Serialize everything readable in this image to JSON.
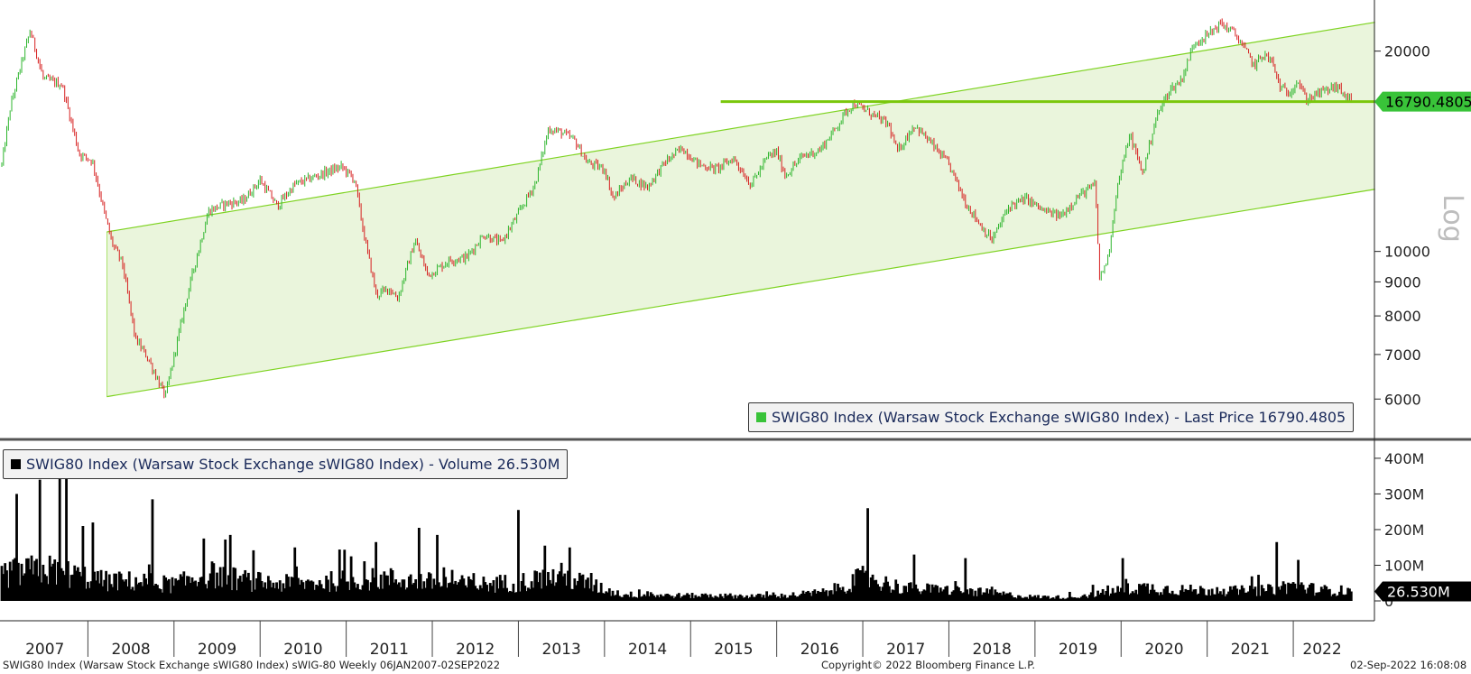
{
  "chart_data": [
    {
      "type": "candlestick",
      "scale": "log",
      "ylabel": "Log",
      "ylim": [
        5300,
        23500
      ],
      "y_ticks": [
        6000,
        7000,
        8000,
        9000,
        10000,
        20000
      ],
      "y_tick_labels": [
        "6000",
        "7000",
        "8000",
        "9000",
        "10000",
        "20000"
      ],
      "last_price_label": "16790.4805",
      "last_price": 16790.4805,
      "colors": {
        "up": "#2db52d",
        "down": "#d62020",
        "channel_fill": "#eaf5dc",
        "channel_line": "#7ed321",
        "level_line": "#7ac70c",
        "last_price_bg": "#39c339"
      },
      "channel": {
        "start_year": 2008.22,
        "end_year": 2022.95,
        "upper": [
          10700,
          22100
        ],
        "lower": [
          6050,
          12400
        ]
      },
      "support_level": {
        "start_year": 2015.35,
        "end_year": 2022.95,
        "value": 16790
      },
      "series": [
        {
          "name": "SWIG80 Index (Warsaw Stock Exchange sWIG80 Index) - Last Price 16790.4805",
          "anchors": [
            [
              2007.0,
              13500
            ],
            [
              2007.1,
              16500
            ],
            [
              2007.22,
              19000
            ],
            [
              2007.33,
              21500
            ],
            [
              2007.48,
              18200
            ],
            [
              2007.7,
              17800
            ],
            [
              2007.9,
              14000
            ],
            [
              2008.05,
              13700
            ],
            [
              2008.2,
              11300
            ],
            [
              2008.28,
              10300
            ],
            [
              2008.4,
              9600
            ],
            [
              2008.55,
              7400
            ],
            [
              2008.7,
              6900
            ],
            [
              2008.9,
              6050
            ],
            [
              2009.1,
              8000
            ],
            [
              2009.2,
              9100
            ],
            [
              2009.4,
              11500
            ],
            [
              2009.6,
              11800
            ],
            [
              2009.8,
              11900
            ],
            [
              2010.0,
              12800
            ],
            [
              2010.2,
              11700
            ],
            [
              2010.4,
              12600
            ],
            [
              2010.6,
              12900
            ],
            [
              2010.8,
              13200
            ],
            [
              2010.95,
              13400
            ],
            [
              2011.1,
              12800
            ],
            [
              2011.2,
              10700
            ],
            [
              2011.35,
              8600
            ],
            [
              2011.5,
              8800
            ],
            [
              2011.6,
              8500
            ],
            [
              2011.8,
              10400
            ],
            [
              2011.95,
              9200
            ],
            [
              2012.2,
              9700
            ],
            [
              2012.4,
              9800
            ],
            [
              2012.6,
              10600
            ],
            [
              2012.8,
              10300
            ],
            [
              2013.0,
              11400
            ],
            [
              2013.2,
              12700
            ],
            [
              2013.35,
              15300
            ],
            [
              2013.5,
              15100
            ],
            [
              2013.65,
              14700
            ],
            [
              2013.8,
              13600
            ],
            [
              2014.0,
              13300
            ],
            [
              2014.1,
              12000
            ],
            [
              2014.3,
              12900
            ],
            [
              2014.5,
              12500
            ],
            [
              2014.7,
              13600
            ],
            [
              2014.9,
              14300
            ],
            [
              2015.1,
              13500
            ],
            [
              2015.3,
              13300
            ],
            [
              2015.5,
              13800
            ],
            [
              2015.7,
              12600
            ],
            [
              2015.9,
              13900
            ],
            [
              2016.0,
              14100
            ],
            [
              2016.1,
              13000
            ],
            [
              2016.3,
              13900
            ],
            [
              2016.5,
              14200
            ],
            [
              2016.7,
              15400
            ],
            [
              2016.8,
              16200
            ],
            [
              2016.9,
              16700
            ],
            [
              2017.1,
              16100
            ],
            [
              2017.3,
              15500
            ],
            [
              2017.4,
              14100
            ],
            [
              2017.6,
              15500
            ],
            [
              2017.8,
              14500
            ],
            [
              2018.0,
              13500
            ],
            [
              2018.2,
              11800
            ],
            [
              2018.4,
              10800
            ],
            [
              2018.5,
              10400
            ],
            [
              2018.7,
              11700
            ],
            [
              2018.9,
              12000
            ],
            [
              2019.1,
              11500
            ],
            [
              2019.3,
              11300
            ],
            [
              2019.5,
              12100
            ],
            [
              2019.7,
              12600
            ],
            [
              2019.75,
              9100
            ],
            [
              2019.85,
              9800
            ],
            [
              2019.95,
              12400
            ],
            [
              2020.1,
              15000
            ],
            [
              2020.25,
              13100
            ],
            [
              2020.4,
              15800
            ],
            [
              2020.55,
              17400
            ],
            [
              2020.7,
              18100
            ],
            [
              2020.85,
              20600
            ],
            [
              2021.0,
              21100
            ],
            [
              2021.15,
              22000
            ],
            [
              2021.3,
              21400
            ],
            [
              2021.4,
              20500
            ],
            [
              2021.55,
              19000
            ],
            [
              2021.65,
              19800
            ],
            [
              2021.75,
              19300
            ],
            [
              2021.85,
              17600
            ],
            [
              2021.95,
              17300
            ],
            [
              2022.05,
              18100
            ],
            [
              2022.15,
              16900
            ],
            [
              2022.3,
              17300
            ],
            [
              2022.5,
              17700
            ],
            [
              2022.67,
              16790
            ]
          ]
        }
      ],
      "x_labels": [
        "2007",
        "2008",
        "2009",
        "2010",
        "2011",
        "2012",
        "2013",
        "2014",
        "2015",
        "2016",
        "2017",
        "2018",
        "2019",
        "2020",
        "2021",
        "2022"
      ],
      "x_tick_years": [
        2007,
        2008,
        2009,
        2010,
        2011,
        2012,
        2013,
        2014,
        2015,
        2016,
        2017,
        2018,
        2019,
        2020,
        2021,
        2022
      ]
    },
    {
      "type": "bar",
      "ylim": [
        0,
        420
      ],
      "y_ticks": [
        0,
        100,
        200,
        300,
        400
      ],
      "y_tick_labels": [
        "0",
        "100M",
        "200M",
        "300M",
        "400M"
      ],
      "last_volume_label": "26.530M",
      "last_volume": 26.53,
      "colors": {
        "bars": "#000000",
        "last_volume_bg": "#000000"
      },
      "series": [
        {
          "name": "SWIG80 Index (Warsaw Stock Exchange sWIG80 Index) - Volume 26.530M",
          "level_anchors": [
            [
              2007.0,
              75
            ],
            [
              2007.2,
              80
            ],
            [
              2007.5,
              88
            ],
            [
              2007.9,
              70
            ],
            [
              2008.2,
              55
            ],
            [
              2008.6,
              55
            ],
            [
              2009.0,
              45
            ],
            [
              2009.4,
              75
            ],
            [
              2009.8,
              58
            ],
            [
              2010.2,
              48
            ],
            [
              2010.6,
              50
            ],
            [
              2011.0,
              58
            ],
            [
              2011.5,
              62
            ],
            [
              2012.0,
              52
            ],
            [
              2012.5,
              45
            ],
            [
              2013.0,
              52
            ],
            [
              2013.5,
              70
            ],
            [
              2013.9,
              40
            ],
            [
              2014.2,
              18
            ],
            [
              2014.8,
              15
            ],
            [
              2015.5,
              14
            ],
            [
              2016.0,
              13
            ],
            [
              2016.6,
              25
            ],
            [
              2017.0,
              65
            ],
            [
              2017.5,
              35
            ],
            [
              2018.0,
              30
            ],
            [
              2018.5,
              22
            ],
            [
              2018.9,
              12
            ],
            [
              2019.4,
              10
            ],
            [
              2019.8,
              22
            ],
            [
              2020.2,
              38
            ],
            [
              2020.8,
              30
            ],
            [
              2021.3,
              28
            ],
            [
              2021.7,
              30
            ],
            [
              2022.0,
              45
            ],
            [
              2022.3,
              30
            ],
            [
              2022.67,
              28
            ]
          ],
          "spikes": [
            [
              2007.18,
              300
            ],
            [
              2007.45,
              340
            ],
            [
              2007.68,
              395
            ],
            [
              2007.75,
              380
            ],
            [
              2007.95,
              210
            ],
            [
              2008.05,
              220
            ],
            [
              2008.75,
              285
            ],
            [
              2009.35,
              175
            ],
            [
              2009.65,
              185
            ],
            [
              2010.4,
              150
            ],
            [
              2011.35,
              165
            ],
            [
              2011.85,
              205
            ],
            [
              2012.05,
              185
            ],
            [
              2013.0,
              255
            ],
            [
              2013.3,
              155
            ],
            [
              2013.6,
              150
            ],
            [
              2017.05,
              260
            ],
            [
              2017.6,
              130
            ],
            [
              2018.2,
              120
            ],
            [
              2020.02,
              120
            ],
            [
              2021.8,
              165
            ],
            [
              2022.05,
              115
            ]
          ]
        }
      ]
    }
  ],
  "footer": {
    "left": "SWIG80 Index (Warsaw Stock Exchange sWIG80 Index) sWIG-80  Weekly 06JAN2007-02SEP2022",
    "center": "Copyright© 2022 Bloomberg Finance L.P.",
    "right": "02-Sep-2022 16:08:08"
  }
}
